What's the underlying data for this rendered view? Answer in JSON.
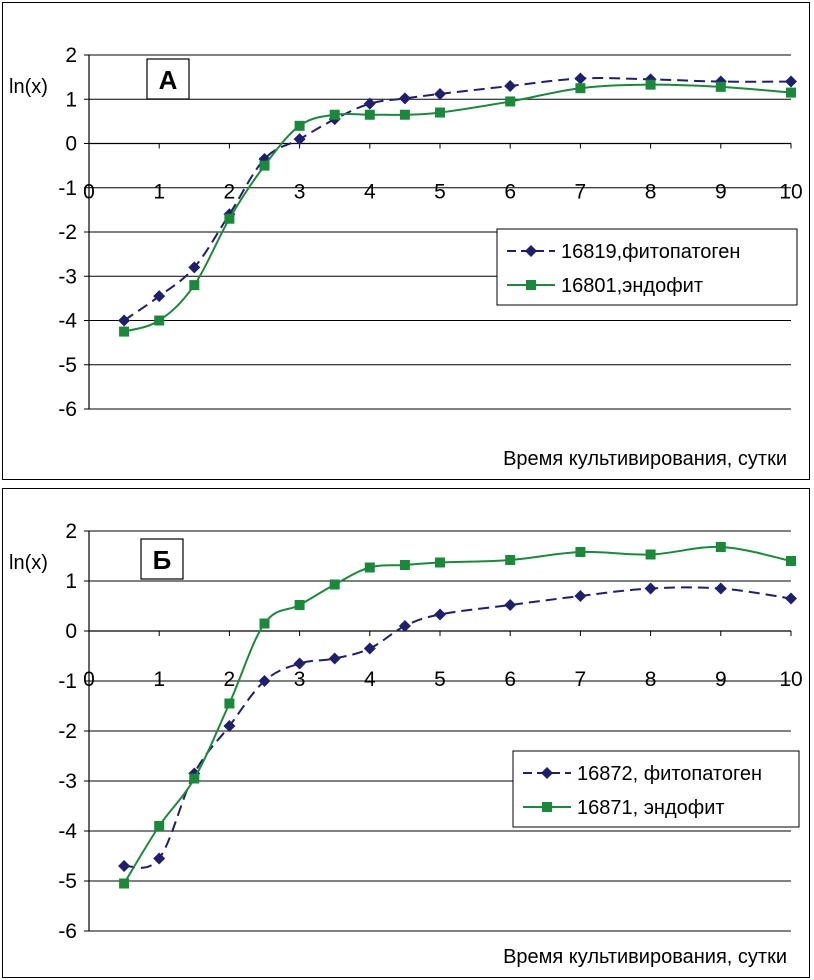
{
  "chart_data": [
    {
      "type": "line",
      "panel_label": "А",
      "ylabel": "ln(x)",
      "xlabel": "Время культивирования, сутки",
      "xlim": [
        0,
        10
      ],
      "ylim": [
        -6,
        2
      ],
      "x_ticks": [
        "0",
        "1",
        "2",
        "3",
        "4",
        "5",
        "6",
        "7",
        "8",
        "9",
        "10"
      ],
      "y_ticks": [
        "2",
        "1",
        "0",
        "-1",
        "-2",
        "-3",
        "-4",
        "-5",
        "-6"
      ],
      "grid": "horizontal",
      "legend_position": "right",
      "series": [
        {
          "name": "16819,фитопатоген",
          "color": "#1f1f6e",
          "marker": "diamond",
          "dash": "dashed",
          "x": [
            0.5,
            1,
            1.5,
            2,
            2.5,
            3,
            3.5,
            4,
            4.5,
            5,
            6,
            7,
            8,
            9,
            10
          ],
          "y": [
            -4.0,
            -3.45,
            -2.8,
            -1.6,
            -0.35,
            0.1,
            0.55,
            0.9,
            1.02,
            1.12,
            1.3,
            1.47,
            1.45,
            1.4,
            1.4
          ]
        },
        {
          "name": "16801,эндофит",
          "color": "#1a8a3a",
          "marker": "square",
          "dash": "solid",
          "x": [
            0.5,
            1,
            1.5,
            2,
            2.5,
            3,
            3.5,
            4,
            4.5,
            5,
            6,
            7,
            8,
            9,
            10
          ],
          "y": [
            -4.25,
            -4.0,
            -3.2,
            -1.7,
            -0.5,
            0.4,
            0.65,
            0.65,
            0.65,
            0.7,
            0.95,
            1.25,
            1.33,
            1.28,
            1.15
          ]
        }
      ]
    },
    {
      "type": "line",
      "panel_label": "Б",
      "ylabel": "ln(x)",
      "xlabel": "Время культивирования, сутки",
      "xlim": [
        0,
        10
      ],
      "ylim": [
        -6,
        2
      ],
      "x_ticks": [
        "0",
        "1",
        "2",
        "3",
        "4",
        "5",
        "6",
        "7",
        "8",
        "9",
        "10"
      ],
      "y_ticks": [
        "2",
        "1",
        "0",
        "-1",
        "-2",
        "-3",
        "-4",
        "-5",
        "-6"
      ],
      "grid": "horizontal",
      "legend_position": "right",
      "series": [
        {
          "name": "16872, фитопатоген",
          "color": "#1f1f6e",
          "marker": "diamond",
          "dash": "dashed",
          "x": [
            0.5,
            1,
            1.5,
            2,
            2.5,
            3,
            3.5,
            4,
            4.5,
            5,
            6,
            7,
            8,
            9,
            10
          ],
          "y": [
            -4.7,
            -4.55,
            -2.85,
            -1.9,
            -1.0,
            -0.65,
            -0.55,
            -0.35,
            0.1,
            0.33,
            0.52,
            0.7,
            0.85,
            0.85,
            0.65
          ]
        },
        {
          "name": "16871, эндофит",
          "color": "#1a8a3a",
          "marker": "square",
          "dash": "solid",
          "x": [
            0.5,
            1,
            1.5,
            2,
            2.5,
            3,
            3.5,
            4,
            4.5,
            5,
            6,
            7,
            8,
            9,
            10
          ],
          "y": [
            -5.05,
            -3.9,
            -2.95,
            -1.45,
            0.15,
            0.52,
            0.93,
            1.27,
            1.32,
            1.37,
            1.42,
            1.58,
            1.53,
            1.68,
            1.4
          ]
        }
      ]
    }
  ]
}
